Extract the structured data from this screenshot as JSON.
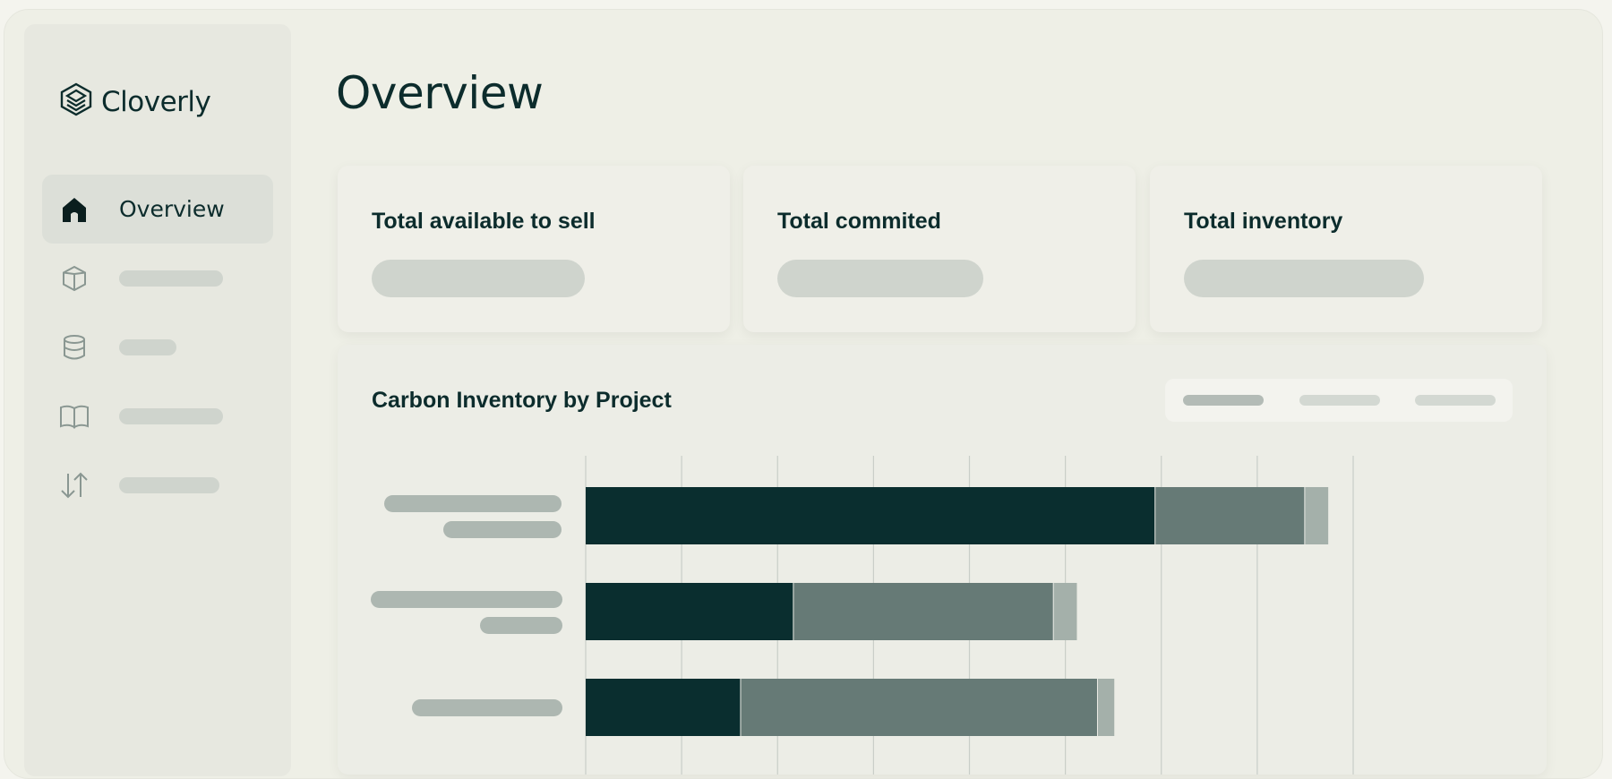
{
  "app": {
    "brand": "Cloverly"
  },
  "sidebar": {
    "items": [
      {
        "label": "Overview",
        "icon": "home-icon",
        "active": true
      },
      {
        "label": "",
        "icon": "cube-icon",
        "active": false
      },
      {
        "label": "",
        "icon": "database-icon",
        "active": false
      },
      {
        "label": "",
        "icon": "book-icon",
        "active": false
      },
      {
        "label": "",
        "icon": "transfer-icon",
        "active": false
      }
    ]
  },
  "main": {
    "title": "Overview",
    "cards": [
      {
        "title": "Total available to sell"
      },
      {
        "title": "Total commited"
      },
      {
        "title": "Total inventory"
      }
    ]
  },
  "chart_data": {
    "type": "bar",
    "orientation": "horizontal",
    "stacked": true,
    "title": "Carbon Inventory by Project",
    "categories": [
      "",
      "",
      ""
    ],
    "series": [
      {
        "values": [
          5.93,
          2.16,
          1.61
        ]
      },
      {
        "values": [
          1.56,
          2.71,
          3.72
        ]
      },
      {
        "values": [
          0.25,
          0.25,
          0.18
        ]
      }
    ],
    "xlim": [
      0,
      8
    ],
    "grid": true,
    "colors": [
      "#0a2e2f",
      "#667a76",
      "#a4b0aa"
    ]
  },
  "colors": {
    "primary": "#0c2c2c",
    "skeleton": "#cfd4cd",
    "background": "#eeefe6"
  }
}
